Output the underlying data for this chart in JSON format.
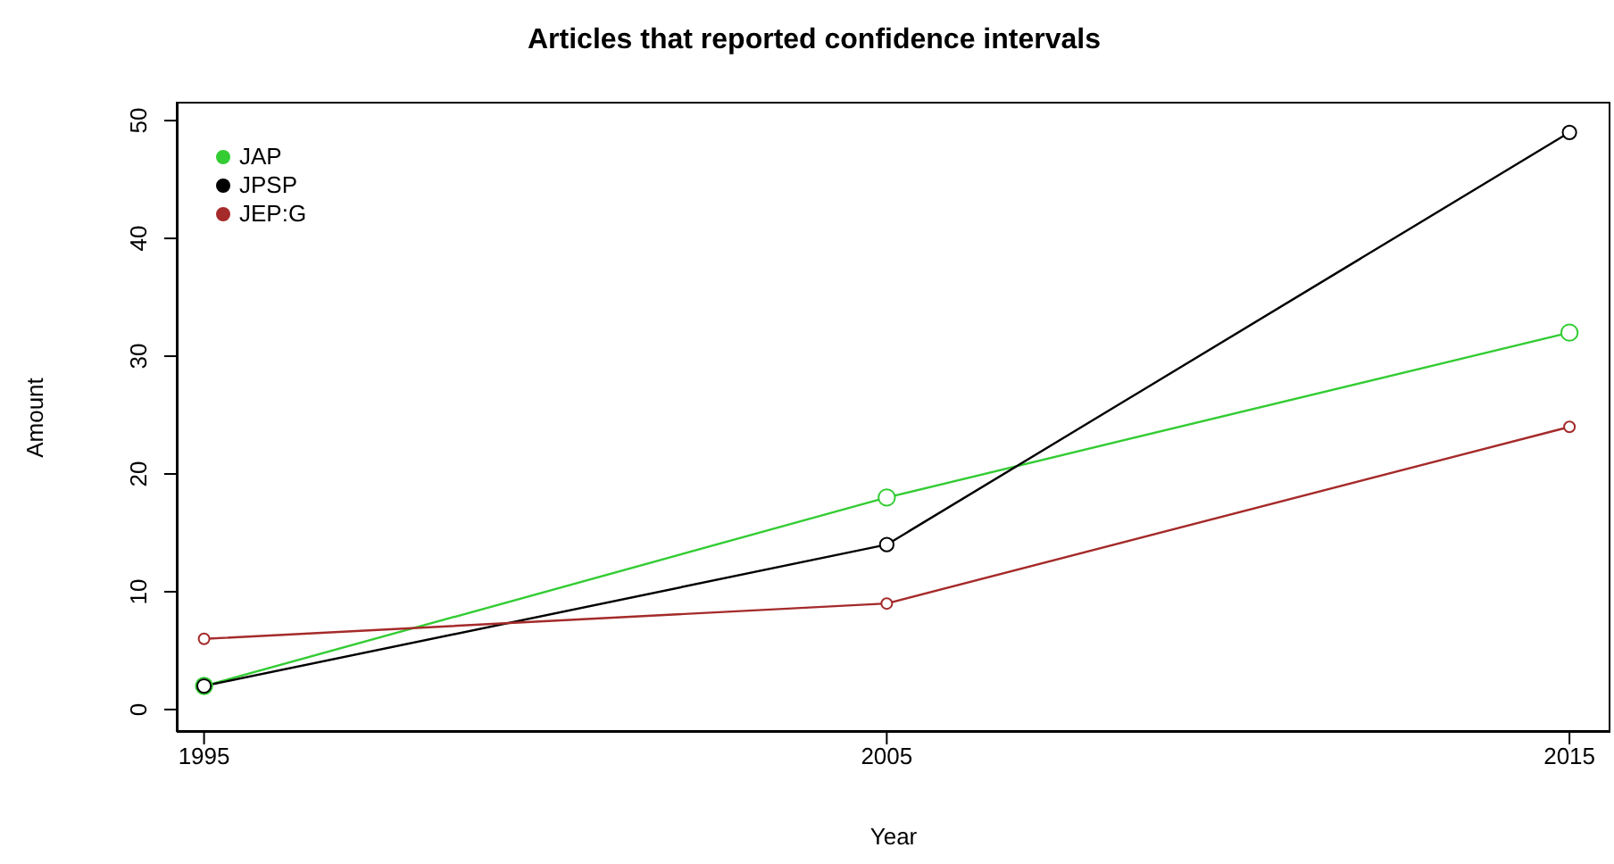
{
  "chart_data": {
    "type": "line",
    "title": "Articles that reported confidence intervals",
    "xlabel": "Year",
    "ylabel": "Amount",
    "x": [
      1995,
      2005,
      2015
    ],
    "series": [
      {
        "name": "JAP",
        "color": "#33cc33",
        "values": [
          2,
          18,
          32
        ]
      },
      {
        "name": "JPSP",
        "color": "#000000",
        "values": [
          2,
          14,
          49
        ]
      },
      {
        "name": "JEP:G",
        "color": "#a52a2a",
        "values": [
          6,
          9,
          24
        ]
      }
    ],
    "xlim": [
      1994.6,
      2015.6
    ],
    "xticks": [
      1995,
      2005,
      2015
    ],
    "ylim": [
      -1.9,
      51.6
    ],
    "yticks": [
      0,
      10,
      20,
      30,
      40,
      50
    ],
    "legend": "top left",
    "marker": "circle",
    "line_style": "solid",
    "grid": false
  }
}
